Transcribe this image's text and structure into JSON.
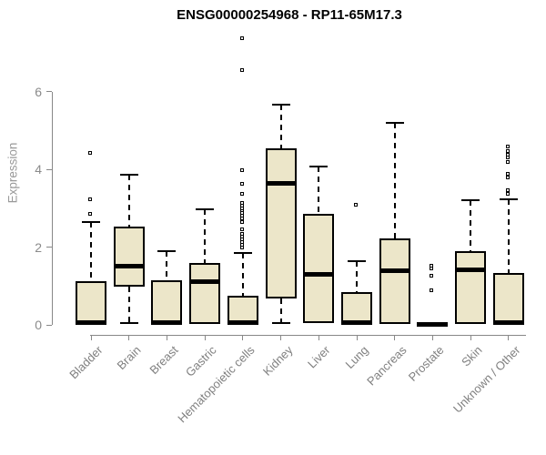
{
  "title": "ENSG00000254968 - RP11-65M17.3",
  "colors": {
    "background": "#ffffff",
    "title": "#000000",
    "box_fill": "#ece6c9",
    "box_border": "#000000",
    "median": "#000000",
    "whisker": "#000000",
    "outlier_border": "#000000",
    "outlier_fill": "#ffffff",
    "axis": "#888888",
    "y_tick_label": "#8a8a8a",
    "x_tick_label": "#808080",
    "y_axis_title": "#999999"
  },
  "chart_data": {
    "type": "boxplot",
    "title": "ENSG00000254968 - RP11-65M17.3",
    "xlabel": "",
    "ylabel": "Expression",
    "ylim": [
      0,
      6
    ],
    "yticks": [
      0,
      2,
      4,
      6
    ],
    "grid": false,
    "legend": "none",
    "categories": [
      "Bladder",
      "Brain",
      "Breast",
      "Gastric",
      "Hematopoietic cells",
      "Kidney",
      "Liver",
      "Lung",
      "Pancreas",
      "Prostate",
      "Skin",
      "Unknown / Other"
    ],
    "boxes": [
      {
        "category": "Bladder",
        "whisker_low": 0,
        "q1": 0,
        "median": 0.06,
        "q3": 1.12,
        "whisker_high": 2.64,
        "outliers": [
          2.84,
          3.2,
          4.4
        ]
      },
      {
        "category": "Brain",
        "whisker_low": 0.05,
        "q1": 0.98,
        "median": 1.51,
        "q3": 2.52,
        "whisker_high": 3.87,
        "outliers": []
      },
      {
        "category": "Breast",
        "whisker_low": 0,
        "q1": 0,
        "median": 0.06,
        "q3": 1.15,
        "whisker_high": 1.9,
        "outliers": []
      },
      {
        "category": "Gastric",
        "whisker_low": 0.02,
        "q1": 0.02,
        "median": 1.11,
        "q3": 1.59,
        "whisker_high": 2.97,
        "outliers": []
      },
      {
        "category": "Hematopoietic cells",
        "whisker_low": 0,
        "q1": 0,
        "median": 0.06,
        "q3": 0.74,
        "whisker_high": 1.86,
        "outliers": [
          1.98,
          2.05,
          2.12,
          2.19,
          2.26,
          2.33,
          2.43,
          2.62,
          2.72,
          2.78,
          2.85,
          2.92,
          2.98,
          3.05,
          3.12,
          3.36,
          3.6,
          3.95,
          6.55,
          7.36
        ]
      },
      {
        "category": "Kidney",
        "whisker_low": 0.04,
        "q1": 0.67,
        "median": 3.65,
        "q3": 4.55,
        "whisker_high": 5.68,
        "outliers": []
      },
      {
        "category": "Liver",
        "whisker_low": 0.04,
        "q1": 0.04,
        "median": 1.31,
        "q3": 2.85,
        "whisker_high": 4.08,
        "outliers": []
      },
      {
        "category": "Lung",
        "whisker_low": 0,
        "q1": 0,
        "median": 0.07,
        "q3": 0.84,
        "whisker_high": 1.64,
        "outliers": [
          3.08
        ]
      },
      {
        "category": "Pancreas",
        "whisker_low": 0.02,
        "q1": 0.02,
        "median": 1.39,
        "q3": 2.23,
        "whisker_high": 5.21,
        "outliers": []
      },
      {
        "category": "Prostate",
        "whisker_low": 0.02,
        "q1": 0,
        "median": 0.02,
        "q3": 0.05,
        "whisker_high": 0.05,
        "outliers": [
          0.86,
          1.24,
          1.42,
          1.49
        ]
      },
      {
        "category": "Skin",
        "whisker_low": 0.02,
        "q1": 0.02,
        "median": 1.41,
        "q3": 1.89,
        "whisker_high": 3.2,
        "outliers": []
      },
      {
        "category": "Unknown / Other",
        "whisker_low": 0,
        "q1": 0.02,
        "median": 0.06,
        "q3": 1.33,
        "whisker_high": 3.23,
        "outliers": [
          3.36,
          3.44,
          3.78,
          3.87,
          4.18,
          4.28,
          4.37,
          4.45,
          4.57
        ]
      }
    ]
  }
}
